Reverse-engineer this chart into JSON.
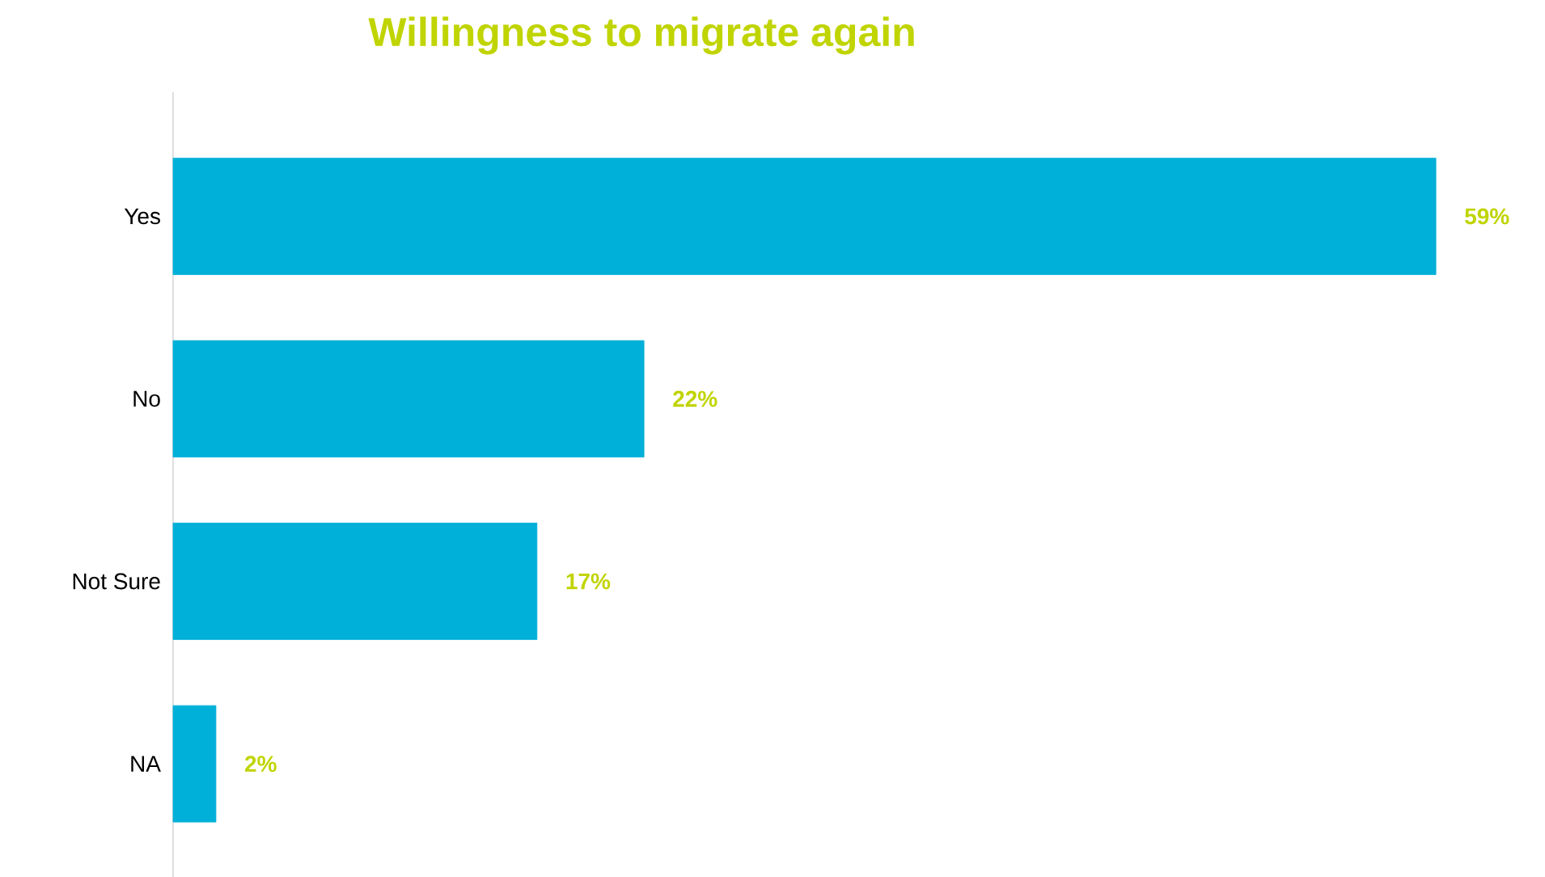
{
  "chart_data": {
    "type": "bar",
    "orientation": "horizontal",
    "title": "Willingness to migrate again",
    "categories": [
      "Yes",
      "No",
      "Not Sure",
      "NA"
    ],
    "values": [
      59,
      22,
      17,
      2
    ],
    "value_labels": [
      "59%",
      "22%",
      "17%",
      "2%"
    ],
    "color": "#00b0d8"
  }
}
